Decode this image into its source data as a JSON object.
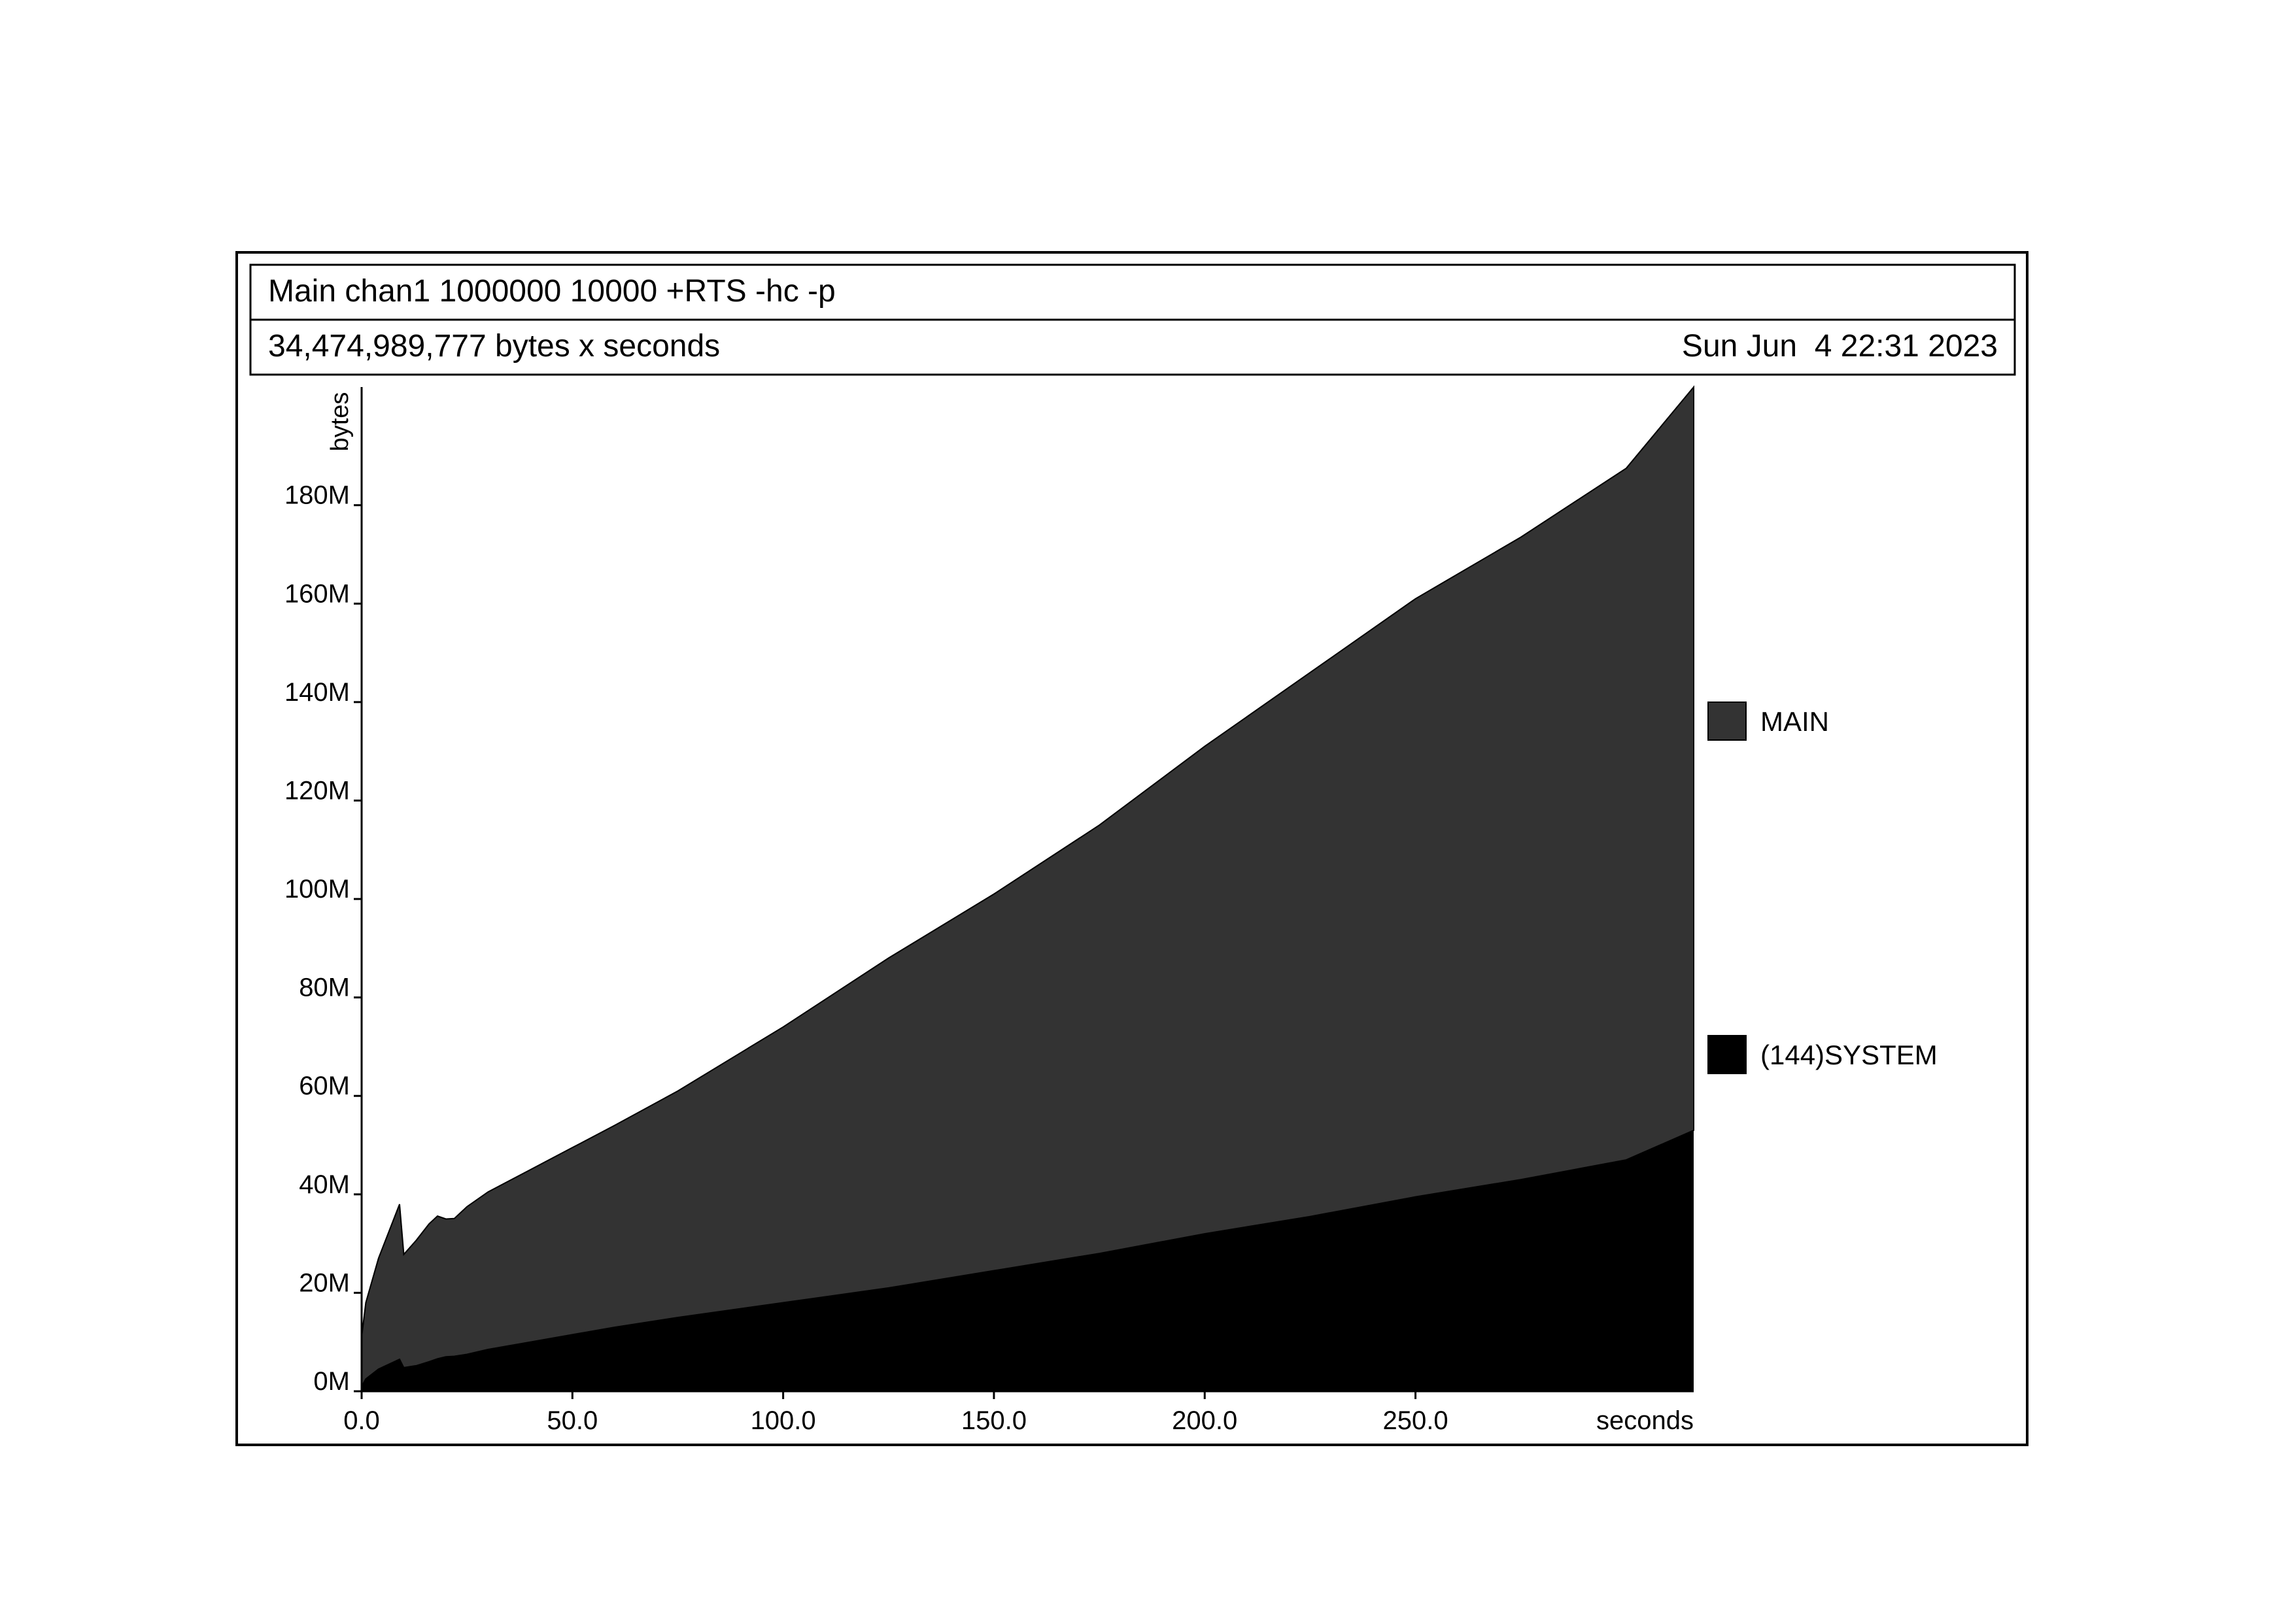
{
  "header": {
    "title": "Main chan1 1000000 10000 +RTS -hc -p",
    "summary": "34,474,989,777 bytes x seconds",
    "date": "Sun Jun  4 22:31 2023"
  },
  "chart_data": {
    "type": "area",
    "stacked": true,
    "title": "Main chan1 1000000 10000 +RTS -hc -p",
    "xlabel": "seconds",
    "ylabel": "bytes",
    "x_unit": "seconds",
    "y_unit": "bytes",
    "xlim": [
      0,
      316
    ],
    "ylim": [
      0,
      204000000
    ],
    "x_ticks": [
      0,
      50,
      100,
      150,
      200,
      250
    ],
    "x_tick_labels": [
      "0.0",
      "50.0",
      "100.0",
      "150.0",
      "200.0",
      "250.0"
    ],
    "y_ticks": [
      0,
      20000000,
      40000000,
      60000000,
      80000000,
      100000000,
      120000000,
      140000000,
      160000000,
      180000000
    ],
    "y_tick_labels": [
      "0M",
      "20M",
      "40M",
      "60M",
      "80M",
      "100M",
      "120M",
      "140M",
      "160M",
      "180M"
    ],
    "grid": false,
    "legend_position": "right",
    "colors": {
      "MAIN": "#333333",
      "(144)SYSTEM": "#000000"
    },
    "x": [
      0,
      1,
      4,
      9,
      10,
      13,
      16,
      18,
      20,
      22,
      25,
      30,
      40,
      50,
      60,
      75,
      100,
      125,
      150,
      175,
      200,
      225,
      250,
      275,
      300,
      316
    ],
    "series": [
      {
        "name": "(144)SYSTEM",
        "values": [
          1000000,
          2500000,
          4500000,
          6500000,
          4800000,
          5200000,
          6000000,
          6600000,
          7000000,
          7100000,
          7500000,
          8500000,
          10000000,
          11500000,
          13000000,
          15000000,
          18000000,
          21000000,
          24500000,
          28000000,
          32000000,
          35500000,
          39500000,
          43000000,
          47000000,
          53000000
        ]
      },
      {
        "name": "MAIN",
        "values": [
          10000000,
          15500000,
          22500000,
          31500000,
          23000000,
          25500000,
          28000000,
          29000000,
          28000000,
          28000000,
          30000000,
          32000000,
          35000000,
          38000000,
          41000000,
          46000000,
          56000000,
          67000000,
          76500000,
          87000000,
          99000000,
          110500000,
          121500000,
          130500000,
          140500000,
          151000000
        ]
      }
    ]
  }
}
